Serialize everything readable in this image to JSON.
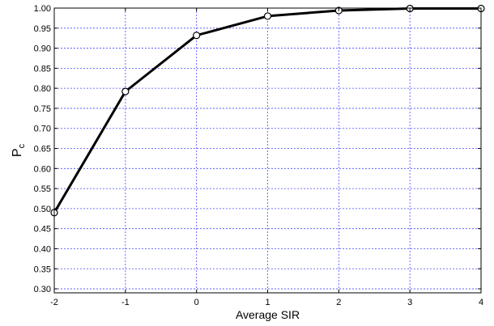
{
  "chart_data": {
    "type": "line",
    "xlabel": "Average SIR",
    "ylabel": {
      "main": "P",
      "subscript": "c"
    },
    "x": [
      -2,
      -1,
      0,
      1,
      2,
      3,
      4
    ],
    "series": [
      {
        "values": [
          0.49,
          0.792,
          0.932,
          0.98,
          0.994,
          0.999,
          0.999
        ]
      }
    ],
    "xlim": [
      -2,
      4
    ],
    "ylim": [
      0.29,
      1.0
    ],
    "xticks": [
      -2,
      -1,
      0,
      1,
      2,
      3,
      4
    ],
    "yticks": [
      0.3,
      0.35,
      0.4,
      0.45,
      0.5,
      0.55,
      0.6,
      0.65,
      0.7,
      0.75,
      0.8,
      0.85,
      0.9,
      0.95,
      1.0
    ],
    "grid": true,
    "marker": "hollow-circle",
    "colors": {
      "line": "#000000",
      "grid": "#4a4aff",
      "marker_fill": "#ffffff"
    }
  }
}
